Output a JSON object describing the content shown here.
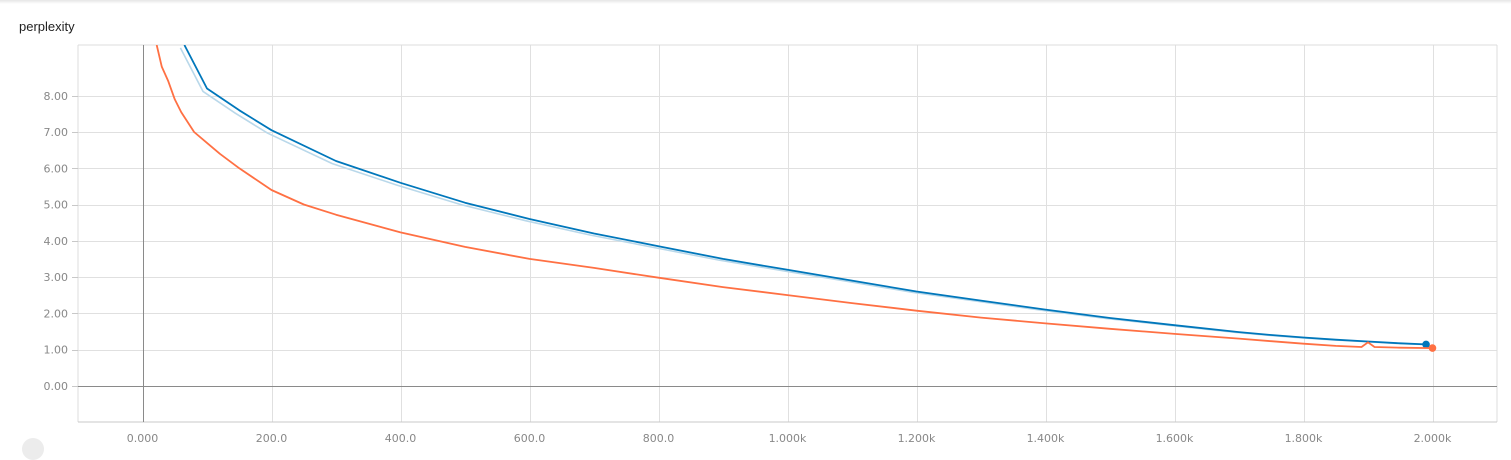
{
  "chart_data": {
    "type": "line",
    "title": "perplexity",
    "xlabel": "",
    "ylabel": "",
    "xlim": [
      -100,
      2100
    ],
    "ylim": [
      -1,
      9.4
    ],
    "grid": true,
    "x_ticks": [
      0,
      200,
      400,
      600,
      800,
      1000,
      1200,
      1400,
      1600,
      1800,
      2000
    ],
    "x_tick_labels": [
      "0.000",
      "200.0",
      "400.0",
      "600.0",
      "800.0",
      "1.000k",
      "1.200k",
      "1.400k",
      "1.600k",
      "1.800k",
      "2.000k"
    ],
    "y_ticks": [
      0,
      1,
      2,
      3,
      4,
      5,
      6,
      7,
      8
    ],
    "y_tick_labels": [
      "0.00",
      "1.00",
      "2.00",
      "3.00",
      "4.00",
      "5.00",
      "6.00",
      "7.00",
      "8.00"
    ],
    "series": [
      {
        "color": "#0077bb",
        "raw_color": "#b9d8ea",
        "x": [
          65,
          100,
          150,
          200,
          300,
          400,
          500,
          600,
          700,
          800,
          900,
          1000,
          1100,
          1200,
          1300,
          1400,
          1500,
          1600,
          1700,
          1750,
          1800,
          1850,
          1900,
          1950,
          1990
        ],
        "values": [
          9.4,
          8.2,
          7.6,
          7.05,
          6.2,
          5.6,
          5.05,
          4.6,
          4.2,
          3.85,
          3.5,
          3.2,
          2.9,
          2.6,
          2.35,
          2.1,
          1.87,
          1.67,
          1.48,
          1.4,
          1.33,
          1.27,
          1.22,
          1.17,
          1.14
        ]
      },
      {
        "color": "#ff7043",
        "x": [
          22,
          30,
          40,
          50,
          60,
          80,
          100,
          120,
          150,
          200,
          250,
          300,
          400,
          500,
          600,
          700,
          800,
          900,
          1000,
          1100,
          1200,
          1300,
          1400,
          1500,
          1600,
          1700,
          1750,
          1800,
          1850,
          1890,
          1900,
          1910,
          1950,
          2000
        ],
        "values": [
          9.4,
          8.8,
          8.4,
          7.9,
          7.55,
          7.0,
          6.7,
          6.4,
          6.0,
          5.4,
          5.0,
          4.72,
          4.23,
          3.83,
          3.5,
          3.25,
          2.98,
          2.72,
          2.5,
          2.28,
          2.07,
          1.88,
          1.72,
          1.57,
          1.43,
          1.3,
          1.23,
          1.16,
          1.1,
          1.07,
          1.2,
          1.07,
          1.05,
          1.04
        ]
      }
    ]
  }
}
